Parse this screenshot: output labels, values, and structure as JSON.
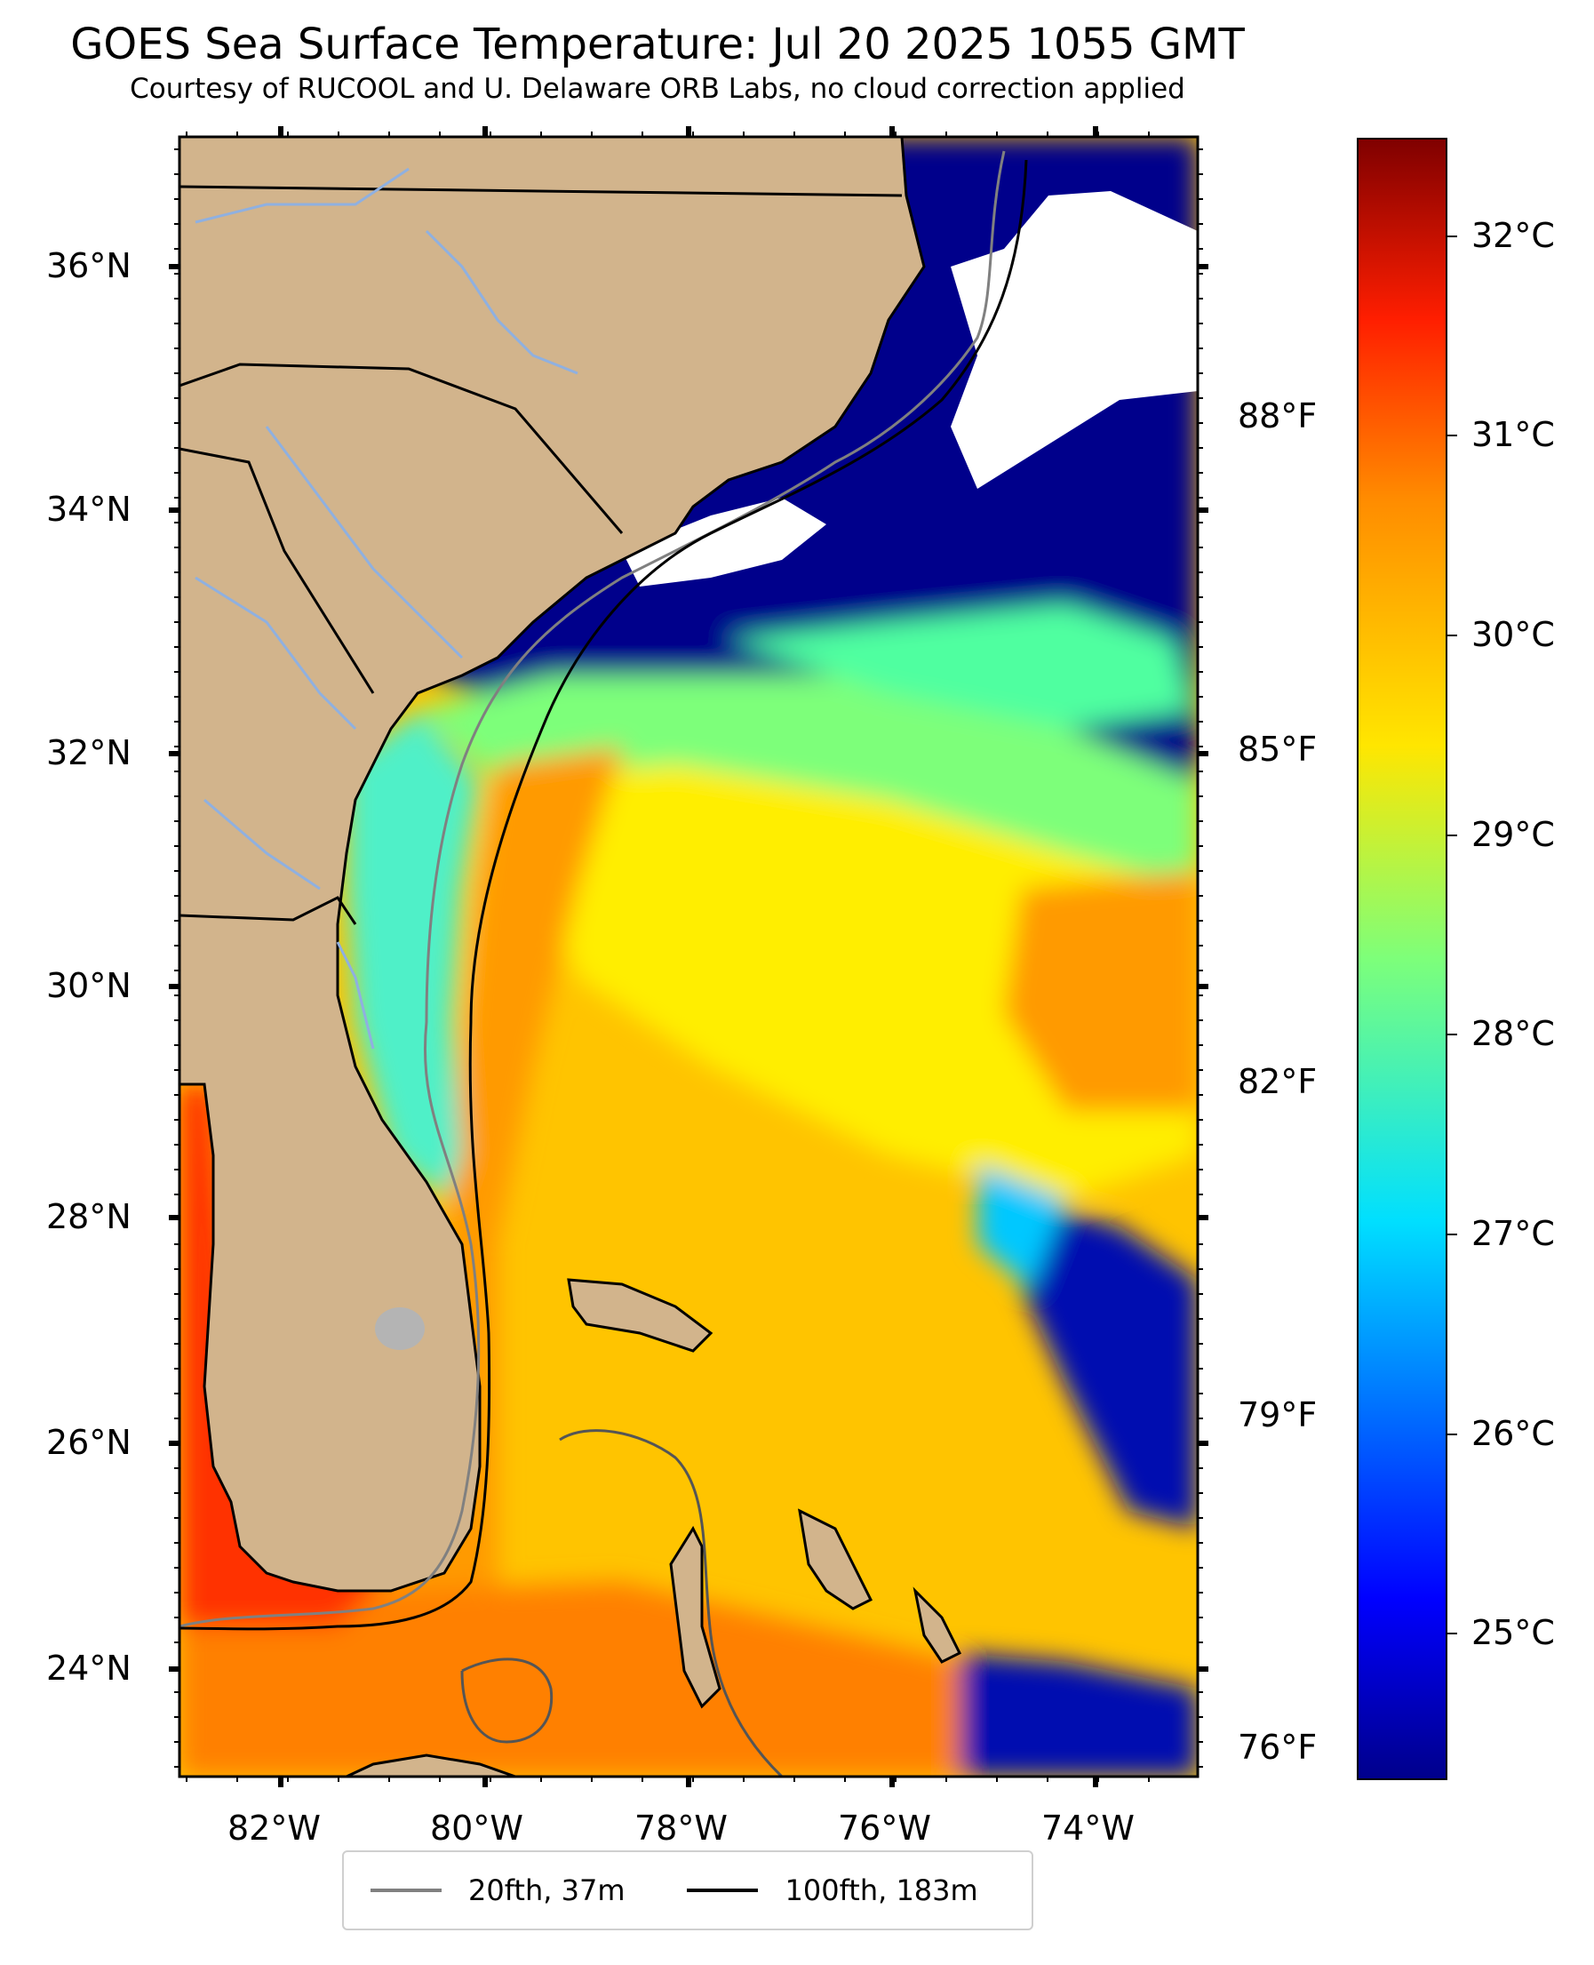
{
  "title": "GOES Sea Surface Temperature: Jul 20 2025 1055 GMT",
  "subtitle": "Courtesy of RUCOOL and U. Delaware ORB Labs, no cloud correction applied",
  "lat_ticks": [
    "36°N",
    "34°N",
    "32°N",
    "30°N",
    "28°N",
    "26°N",
    "24°N"
  ],
  "lon_ticks": [
    "82°W",
    "80°W",
    "78°W",
    "76°W",
    "74°W"
  ],
  "fahrenheit_ticks": [
    "88°F",
    "85°F",
    "82°F",
    "79°F",
    "76°F"
  ],
  "celsius_ticks": [
    "32°C",
    "31°C",
    "30°C",
    "29°C",
    "28°C",
    "27°C",
    "26°C",
    "25°C"
  ],
  "legend": [
    {
      "label": "20fth, 37m",
      "color": "#808080"
    },
    {
      "label": "100fth, 183m",
      "color": "#000000"
    }
  ],
  "colors": {
    "land": "#d2b48c",
    "cold": "#00008b",
    "warm": "#ff4500",
    "clouds": "#ffffff"
  }
}
